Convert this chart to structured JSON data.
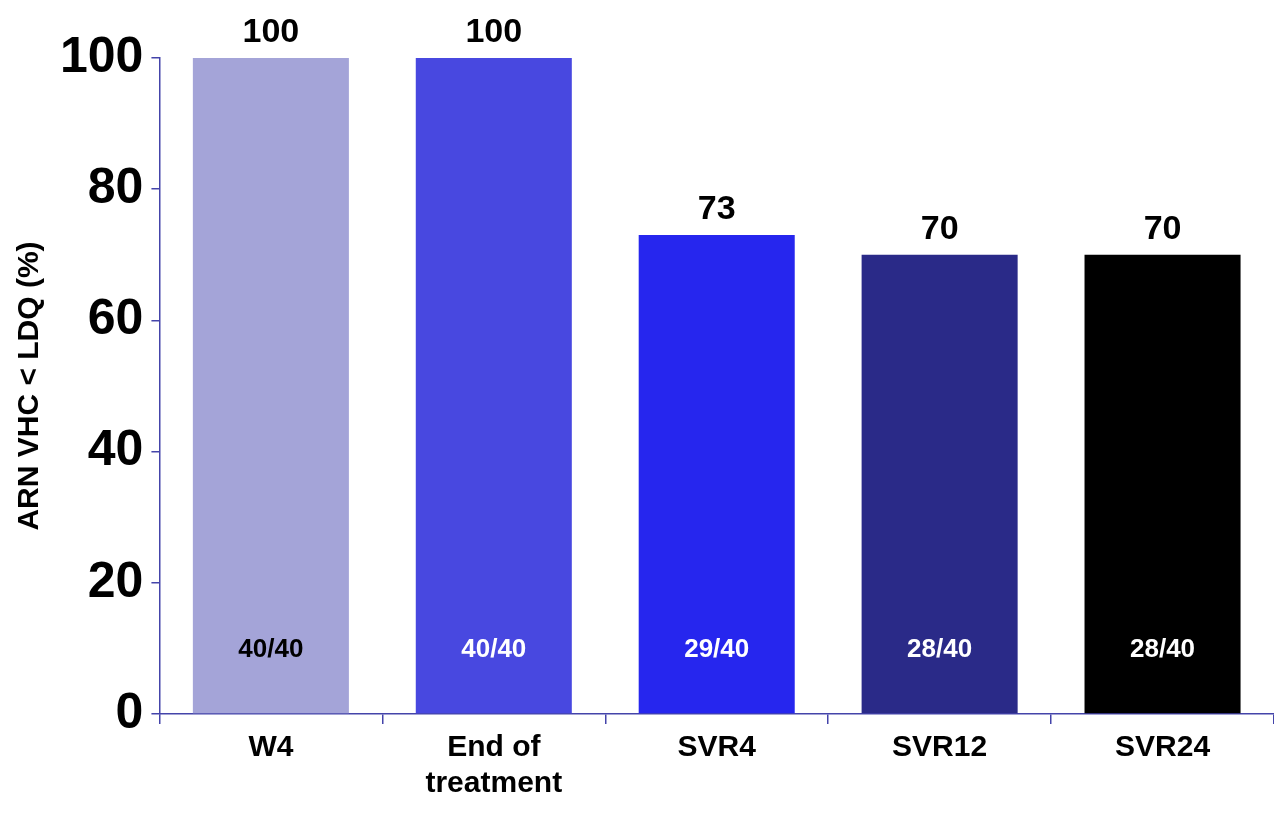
{
  "chart_data": {
    "type": "bar",
    "ylabel": "ARN VHC < LDQ (%)",
    "categories": [
      "W4",
      "End of treatment",
      "SVR4",
      "SVR12",
      "SVR24"
    ],
    "values": [
      100,
      100,
      73,
      70,
      70
    ],
    "colors": [
      "#a4a4d8",
      "#4848e0",
      "#2626ee",
      "#2a2a88",
      "#000000"
    ],
    "ylim": [
      0,
      100
    ],
    "yticks": [
      0,
      20,
      40,
      60,
      80,
      100
    ],
    "grid": false,
    "legend": false,
    "data_labels": true,
    "annotations": [
      "40/40",
      "40/40",
      "29/40",
      "28/40",
      "28/40"
    ]
  }
}
